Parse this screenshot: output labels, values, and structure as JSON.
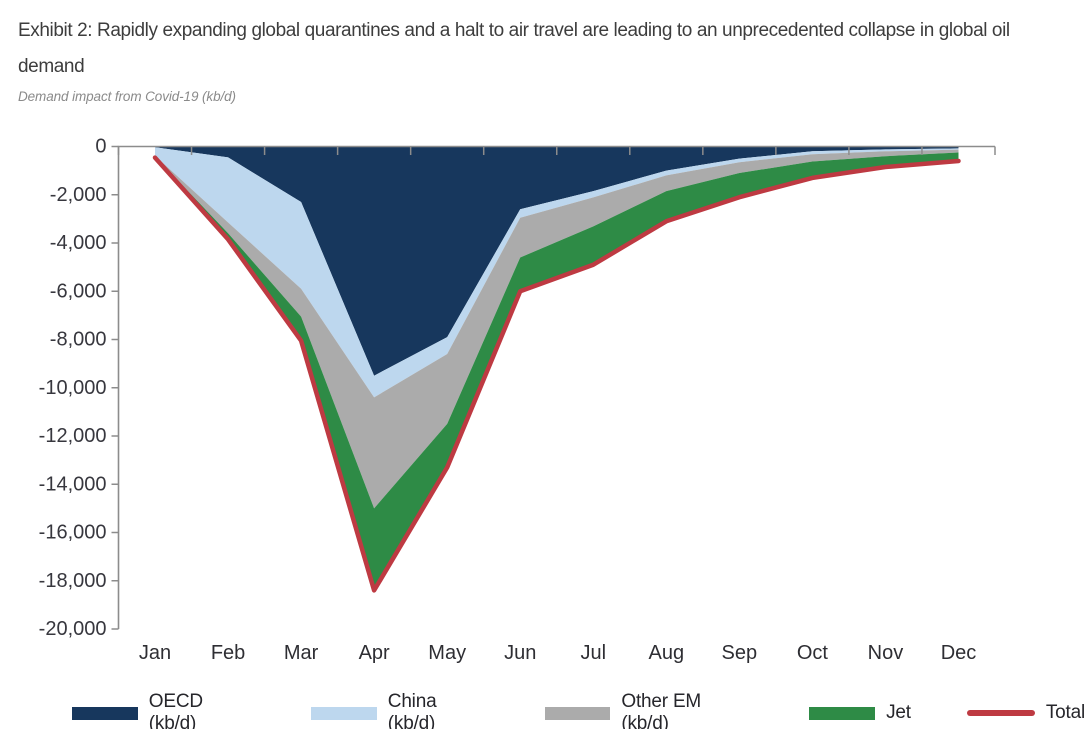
{
  "header": {
    "title": "Exhibit 2: Rapidly expanding global quarantines and a halt to air travel are leading to an unprecedented collapse in global oil demand",
    "subtitle": "Demand impact from Covid-19 (kb/d)"
  },
  "colors": {
    "oecd": "#17375D",
    "china": "#BDD7EE",
    "other_em": "#ABABAB",
    "jet": "#2E8B46",
    "total": "#BE3A42",
    "axis": "#8C8C8C",
    "axis_text": "#37373E"
  },
  "chart_data": {
    "type": "area",
    "stacked": true,
    "title": "Demand impact from Covid-19 (kb/d)",
    "xlabel": "",
    "ylabel": "",
    "categories": [
      "Jan",
      "Feb",
      "Mar",
      "Apr",
      "May",
      "Jun",
      "Jul",
      "Aug",
      "Sep",
      "Oct",
      "Nov",
      "Dec"
    ],
    "series": [
      {
        "name": "OECD (kb/d)",
        "color": "#17375D",
        "values": [
          -30,
          -450,
          -2300,
          -9500,
          -7900,
          -2600,
          -1850,
          -1000,
          -500,
          -200,
          -120,
          -80
        ]
      },
      {
        "name": "China (kb/d)",
        "color": "#BDD7EE",
        "values": [
          -350,
          -2700,
          -3600,
          -900,
          -700,
          -350,
          -260,
          -200,
          -150,
          -120,
          -80,
          -50
        ]
      },
      {
        "name": "Other EM (kb/d)",
        "color": "#ABABAB",
        "values": [
          -30,
          -450,
          -1150,
          -4600,
          -2900,
          -1650,
          -1200,
          -650,
          -450,
          -300,
          -200,
          -120
        ]
      },
      {
        "name": "Jet",
        "color": "#2E8B46",
        "values": [
          -50,
          -250,
          -1000,
          -3400,
          -1800,
          -1400,
          -1590,
          -1250,
          -1000,
          -680,
          -450,
          -350
        ]
      }
    ],
    "total_series": {
      "name": "Total",
      "color": "#BE3A42",
      "values": [
        -460,
        -3850,
        -8050,
        -18400,
        -13300,
        -6000,
        -4900,
        -3100,
        -2100,
        -1300,
        -850,
        -600
      ]
    },
    "ylim": [
      -20000,
      0
    ],
    "y_tick_step": 2000,
    "y_tick_labels": [
      "0",
      "-2,000",
      "-4,000",
      "-6,000",
      "-8,000",
      "-10,000",
      "-12,000",
      "-14,000",
      "-16,000",
      "-18,000",
      "-20,000"
    ],
    "grid": false,
    "legend_position": "bottom"
  },
  "legend": {
    "items": [
      {
        "label": "OECD (kb/d)",
        "swatch": "area",
        "color": "#17375D"
      },
      {
        "label": "China (kb/d)",
        "swatch": "area",
        "color": "#BDD7EE"
      },
      {
        "label": "Other EM (kb/d)",
        "swatch": "area",
        "color": "#ABABAB"
      },
      {
        "label": "Jet",
        "swatch": "area",
        "color": "#2E8B46"
      },
      {
        "label": "Total",
        "swatch": "line",
        "color": "#BE3A42"
      }
    ]
  }
}
